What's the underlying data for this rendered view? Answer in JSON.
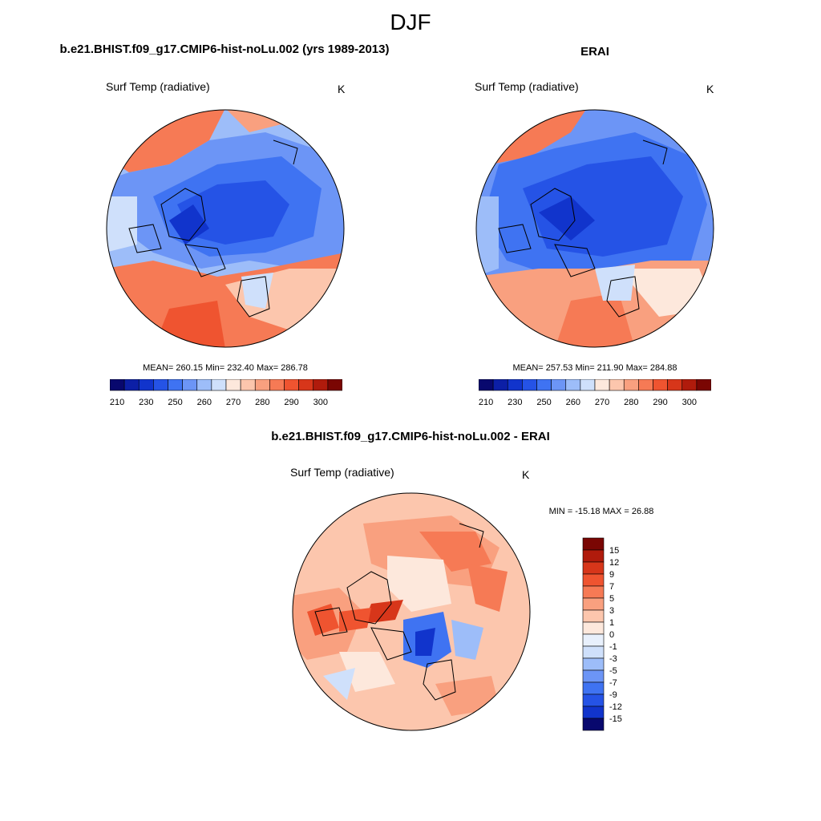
{
  "page": {
    "title": "DJF"
  },
  "panels": [
    {
      "id": "model",
      "title": "b.e21.BHIST.f09_g17.CMIP6-hist-noLu.002 (yrs 1989-2013)",
      "variable": "Surf Temp (radiative)",
      "units": "K",
      "stats": "MEAN= 260.15  Min= 232.40  Max= 286.78"
    },
    {
      "id": "obs",
      "title": "ERAI",
      "variable": "Surf Temp (radiative)",
      "units": "K",
      "stats": "MEAN= 257.53  Min= 211.90  Max= 284.88"
    },
    {
      "id": "diff",
      "title": "b.e21.BHIST.f09_g17.CMIP6-hist-noLu.002 - ERAI",
      "variable": "Surf Temp (radiative)",
      "units": "K",
      "stats": "MIN = -15.18 MAX =  26.88"
    }
  ],
  "colorbar_abs": {
    "tick_labels": [
      "210",
      "230",
      "250",
      "260",
      "270",
      "280",
      "290",
      "300"
    ],
    "colors": [
      "#08086e",
      "#0c1fa6",
      "#1134cc",
      "#2553e6",
      "#3f73f2",
      "#6c95f6",
      "#9dbdf9",
      "#cfe0fb",
      "#fde8dc",
      "#fcc6ad",
      "#f9a07f",
      "#f67a55",
      "#ef5430",
      "#d7361a",
      "#b01b0c",
      "#7a0603"
    ]
  },
  "colorbar_diff": {
    "tick_labels": [
      "15",
      "12",
      "9",
      "7",
      "5",
      "3",
      "1",
      "0",
      "-1",
      "-3",
      "-5",
      "-7",
      "-9",
      "-12",
      "-15"
    ],
    "colors": [
      "#7a0603",
      "#b01b0c",
      "#d7361a",
      "#ef5430",
      "#f67a55",
      "#f9a07f",
      "#fcc6ad",
      "#fde8dc",
      "#e8f0fc",
      "#cfe0fb",
      "#9dbdf9",
      "#6c95f6",
      "#3f73f2",
      "#2553e6",
      "#1134cc",
      "#08086e"
    ]
  }
}
